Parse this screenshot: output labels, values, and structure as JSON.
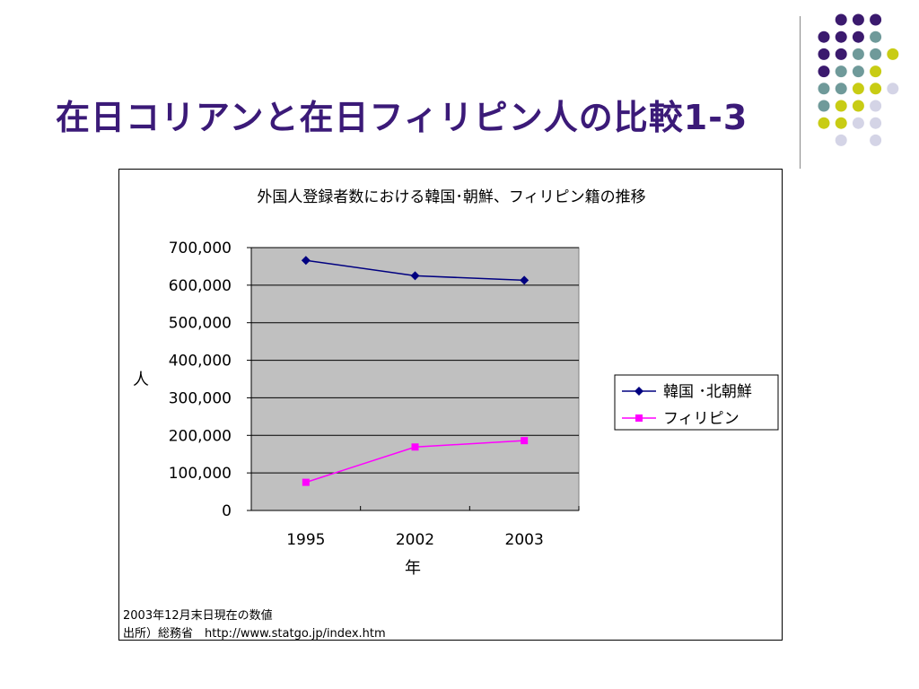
{
  "slide": {
    "title": "在日コリアンと在日フィリピン人の比較1-3"
  },
  "decoration": {
    "dot_colors": {
      "purple": "#3b1a6e",
      "teal": "#6f9a9a",
      "lime": "#c8cc14",
      "lavender": "#d4d4e6"
    }
  },
  "chart_data": {
    "type": "line",
    "title": "外国人登録者数における韓国･朝鮮、フィリピン籍の推移",
    "xlabel": "年",
    "ylabel": "人",
    "categories": [
      "1995",
      "2002",
      "2003"
    ],
    "ylim": [
      0,
      700000
    ],
    "yticks": [
      "0",
      "100,000",
      "200,000",
      "300,000",
      "400,000",
      "500,000",
      "600,000",
      "700,000"
    ],
    "grid": true,
    "plot_background": "#c0c0c0",
    "legend_position": "right",
    "series": [
      {
        "name": "韓国 ･北朝鮮",
        "values": [
          666000,
          625000,
          613000
        ],
        "color": "#000080",
        "marker": "diamond"
      },
      {
        "name": "フィリピン",
        "values": [
          75000,
          169000,
          186000
        ],
        "color": "#ff00ff",
        "marker": "square"
      }
    ]
  },
  "notes": {
    "line1": "2003年12月末日現在の数値",
    "line2": "出所）総務省　http://www.statgo.jp/index.htm"
  }
}
